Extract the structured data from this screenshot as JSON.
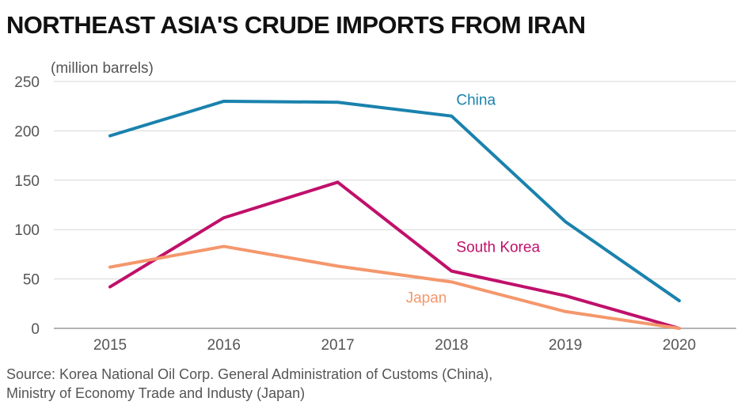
{
  "chart_data": {
    "type": "line",
    "title": "NORTHEAST ASIA'S CRUDE IMPORTS FROM IRAN",
    "ylabel": "(million barrels)",
    "xlabel": "",
    "x": [
      "2015",
      "2016",
      "2017",
      "2018",
      "2019",
      "2020"
    ],
    "ylim": [
      0,
      250
    ],
    "yticks": [
      0,
      50,
      100,
      150,
      200,
      250
    ],
    "grid": true,
    "series": [
      {
        "name": "China",
        "color": "#1a82ad",
        "values": [
          195,
          230,
          229,
          215,
          108,
          28
        ]
      },
      {
        "name": "South Korea",
        "color": "#c0106a",
        "values": [
          42,
          112,
          148,
          58,
          33,
          0
        ]
      },
      {
        "name": "Japan",
        "color": "#f4976c",
        "values": [
          62,
          83,
          63,
          47,
          17,
          0
        ]
      }
    ]
  },
  "source": {
    "line1": "Source: Korea National Oil Corp. General Administration of Customs (China),",
    "line2": "Ministry of Economy Trade and Industy (Japan)"
  }
}
